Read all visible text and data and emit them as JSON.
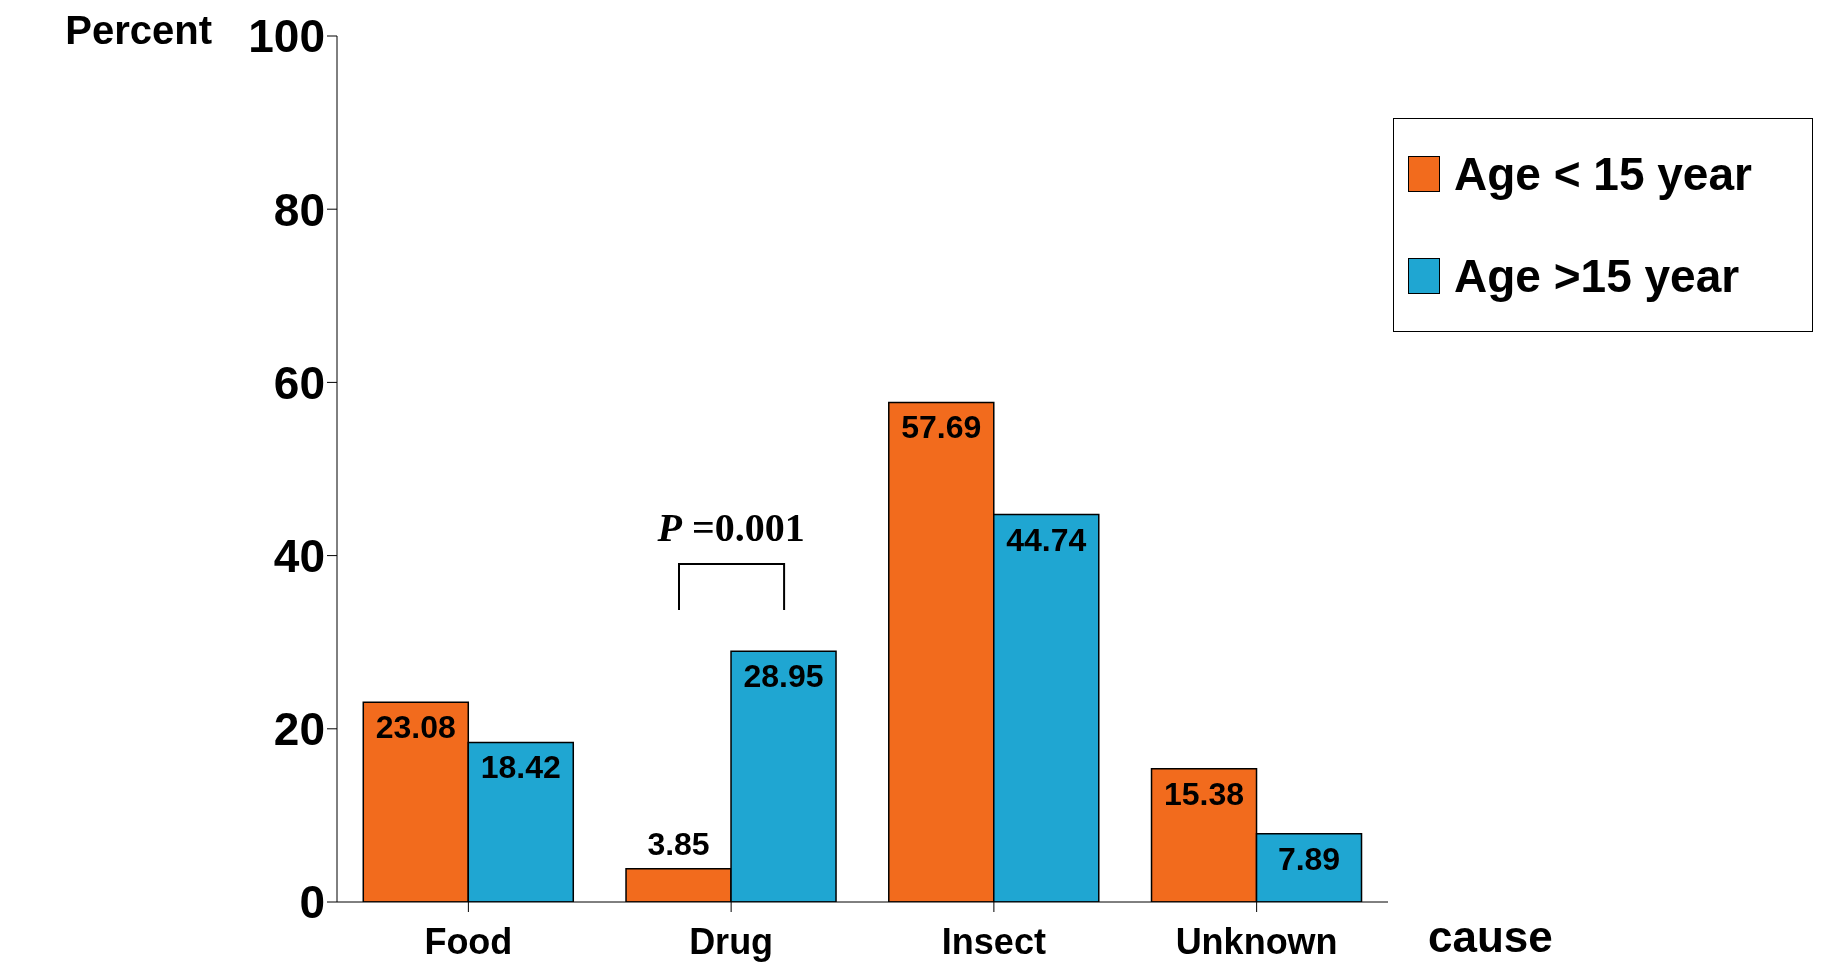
{
  "chart_data": {
    "type": "bar",
    "ylabel": "Percent",
    "xlabel": "cause",
    "categories": [
      "Food",
      "Drug",
      "Insect",
      "Unknown"
    ],
    "series": [
      {
        "name": "Age < 15 year",
        "color": "#f26b1d",
        "values": [
          23.08,
          3.85,
          57.69,
          15.38
        ]
      },
      {
        "name": "Age >15 year",
        "color": "#1fa6d2",
        "values": [
          18.42,
          28.95,
          44.74,
          7.89
        ]
      }
    ],
    "ylim": [
      0,
      100
    ],
    "yticks": [
      0,
      20,
      40,
      60,
      80,
      100
    ],
    "legend": "right",
    "data_labels": true,
    "annotations": [
      "P =0.001"
    ]
  }
}
